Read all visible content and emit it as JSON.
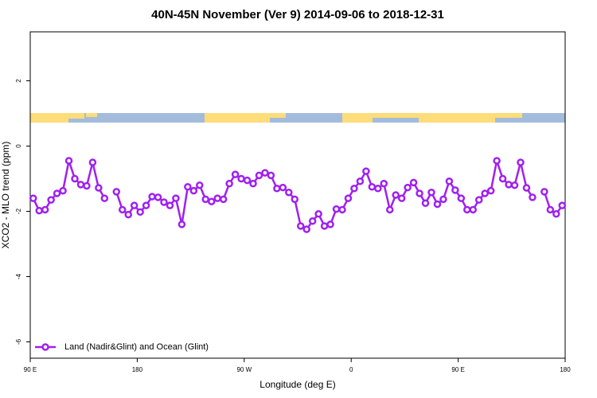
{
  "chart_data": {
    "type": "line",
    "title": "40N-45N November (Ver 9)   2014-09-06 to 2018-12-31",
    "x_label": "Longitude (deg E)",
    "y_label": "XCO2 - MLO trend (ppm)",
    "x": [
      92.5,
      97.5,
      102.5,
      107.5,
      112.5,
      117.5,
      122.5,
      127.5,
      132.5,
      137.5,
      142.5,
      147.5,
      152.5,
      157.5,
      162.5,
      167.5,
      172.5,
      177.5,
      182.5,
      187.5,
      192.5,
      197.5,
      202.5,
      207.5,
      212.5,
      217.5,
      222.5,
      227.5,
      232.5,
      237.5,
      242.5,
      247.5,
      252.5,
      257.5,
      262.5,
      267.5,
      272.5,
      277.5,
      282.5,
      287.5,
      292.5,
      297.5,
      302.5,
      307.5,
      312.5,
      317.5,
      322.5,
      327.5,
      332.5,
      337.5,
      342.5,
      347.5,
      352.5,
      357.5,
      362.5,
      367.5,
      372.5,
      377.5,
      382.5,
      387.5,
      392.5,
      397.5,
      402.5,
      407.5,
      412.5,
      417.5,
      422.5,
      427.5,
      432.5,
      437.5,
      442.5,
      447.5,
      452.5,
      457.5,
      462.5,
      467.5,
      472.5,
      477.5,
      482.5,
      487.5,
      492.5,
      497.5,
      502.5,
      507.5,
      512.5,
      517.5,
      522.5,
      527.5,
      532.5,
      537.5
    ],
    "series": [
      {
        "name": "Land (Nadir&Glint) and Ocean (Glint)",
        "color": "#a020f0",
        "values": [
          -1.6,
          -1.98,
          -1.95,
          -1.65,
          -1.45,
          -1.37,
          -0.45,
          -1.0,
          -1.18,
          -1.22,
          -0.5,
          -1.28,
          -1.6,
          null,
          -1.4,
          -1.95,
          -2.1,
          -1.82,
          -2.02,
          -1.82,
          -1.55,
          -1.57,
          -1.72,
          -1.82,
          -1.6,
          -2.4,
          -1.25,
          -1.37,
          -1.2,
          -1.63,
          -1.7,
          -1.6,
          -1.63,
          -1.15,
          -0.87,
          -1.0,
          -1.05,
          -1.15,
          -0.9,
          -0.82,
          -0.9,
          -1.3,
          -1.27,
          -1.42,
          -1.63,
          -2.45,
          -2.55,
          -2.3,
          -2.08,
          -2.45,
          -2.4,
          -1.93,
          -1.95,
          -1.6,
          -1.3,
          -1.08,
          -0.77,
          -1.25,
          -1.3,
          -1.15,
          -1.95,
          -1.5,
          -1.6,
          -1.27,
          -1.12,
          -1.45,
          -1.75,
          -1.42,
          -1.78,
          -1.63,
          -1.08,
          -1.35,
          -1.6,
          -1.95,
          -1.95,
          -1.65,
          -1.45,
          -1.37,
          -0.45,
          -1.0,
          -1.18,
          -1.2,
          -0.5,
          -1.28,
          -1.57,
          null,
          -1.4,
          -1.95,
          -2.08,
          -1.82
        ]
      }
    ],
    "xlim": [
      90,
      540
    ],
    "xticks": [
      {
        "value": 90,
        "label": "90 E"
      },
      180,
      {
        "value": 270,
        "label": "90 W"
      },
      {
        "value": 360,
        "label": "0"
      },
      {
        "value": 450,
        "label": "90 E"
      },
      {
        "value": 540,
        "label": "180"
      }
    ],
    "ylim": [
      -6.5,
      3.5
    ],
    "yticks": [
      2,
      0,
      -2,
      -4,
      -6
    ],
    "legend": "bottom-left"
  }
}
